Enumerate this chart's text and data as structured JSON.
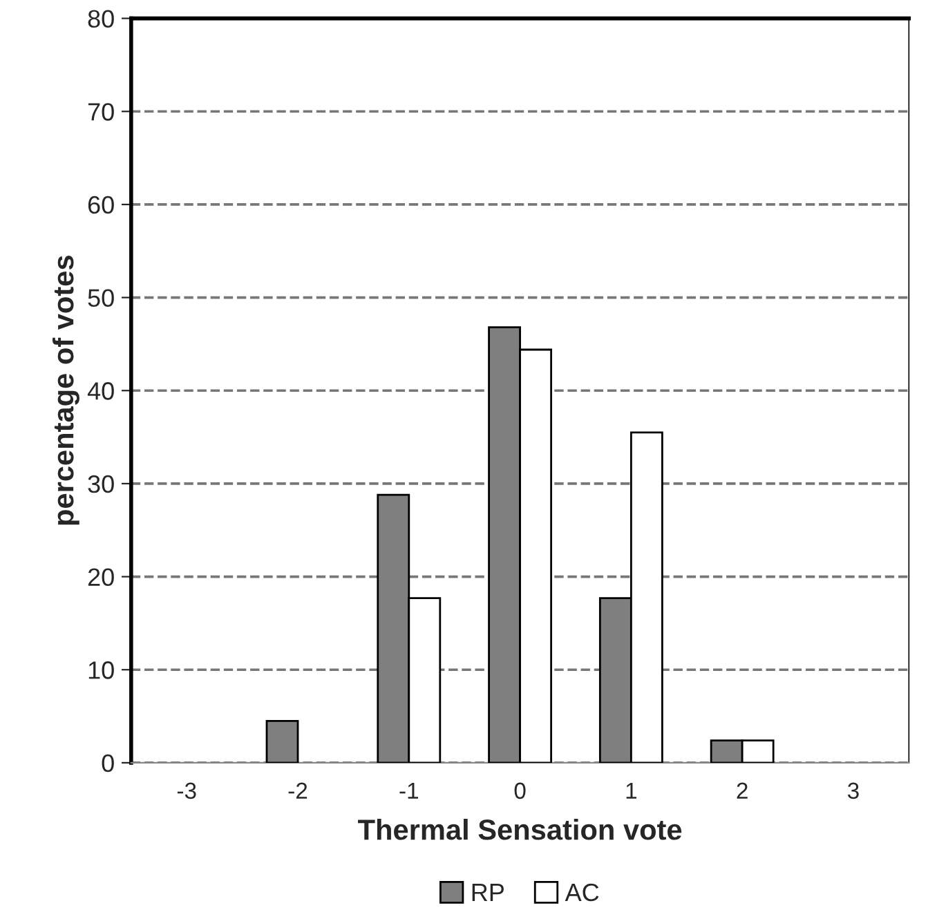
{
  "chart_data": {
    "type": "bar",
    "xlabel": "Thermal Sensation vote",
    "ylabel": "percentage of votes",
    "categories": [
      "-3",
      "-2",
      "-1",
      "0",
      "1",
      "2",
      "3"
    ],
    "series": [
      {
        "name": "RP",
        "color": "#7f7f7f",
        "values": [
          null,
          4.5,
          28.8,
          46.8,
          17.7,
          2.4,
          null
        ]
      },
      {
        "name": "AC",
        "color": "#ffffff",
        "values": [
          null,
          null,
          17.7,
          44.4,
          35.5,
          2.4,
          null
        ]
      }
    ],
    "ylim": [
      0,
      80
    ],
    "yticks": [
      0,
      10,
      20,
      30,
      40,
      50,
      60,
      70,
      80
    ],
    "grid": "y",
    "line_style": "dashed",
    "legend": "bottom"
  }
}
